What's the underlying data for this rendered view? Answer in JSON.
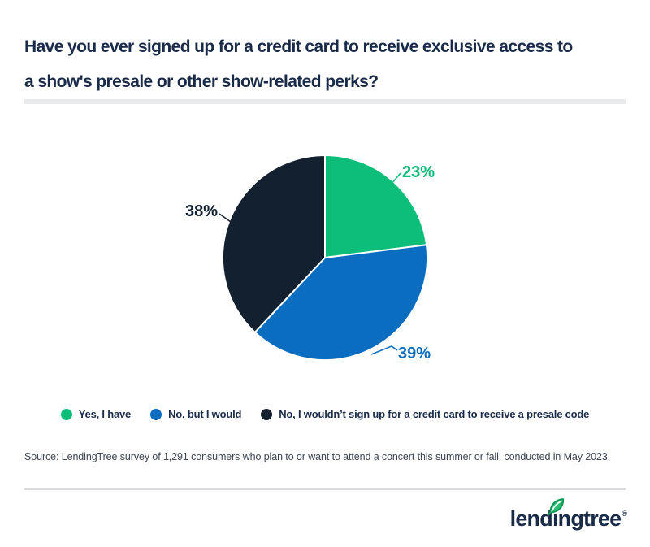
{
  "header": {
    "title_line1": "Have you ever signed up for a credit card to receive exclusive access to",
    "title_line2": "a show's presale or other show-related perks?"
  },
  "chart_data": {
    "type": "pie",
    "title": "Have you ever signed up for a credit card to receive exclusive access to a show's presale or other show-related perks?",
    "start_angle_deg": 0,
    "direction": "clockwise",
    "legend_position": "bottom",
    "slices": [
      {
        "label": "Yes, I have",
        "value": 23,
        "data_label": "23%",
        "color": "#0cbe7a"
      },
      {
        "label": "No, but I would",
        "value": 39,
        "data_label": "39%",
        "color": "#0b6dc0"
      },
      {
        "label": "No, I wouldn’t sign up for a credit card to receive a presale code",
        "value": 38,
        "data_label": "38%",
        "color": "#12202f"
      }
    ]
  },
  "source": {
    "text": "Source: LendingTree survey of 1,291 consumers who plan to or want to attend a concert this summer or fall, conducted in May 2023."
  },
  "footer": {
    "logo_text": "lendingtree",
    "registered_mark": "®"
  },
  "theme": {
    "background": "#ffffff",
    "title_color": "#1a2b49",
    "source_color": "#3c4654",
    "divider_color": "#e8e9ea",
    "footer_rule_color": "#d9dbde",
    "leaf_green": "#26bc72",
    "leaf_dark": "#0d9a56"
  }
}
